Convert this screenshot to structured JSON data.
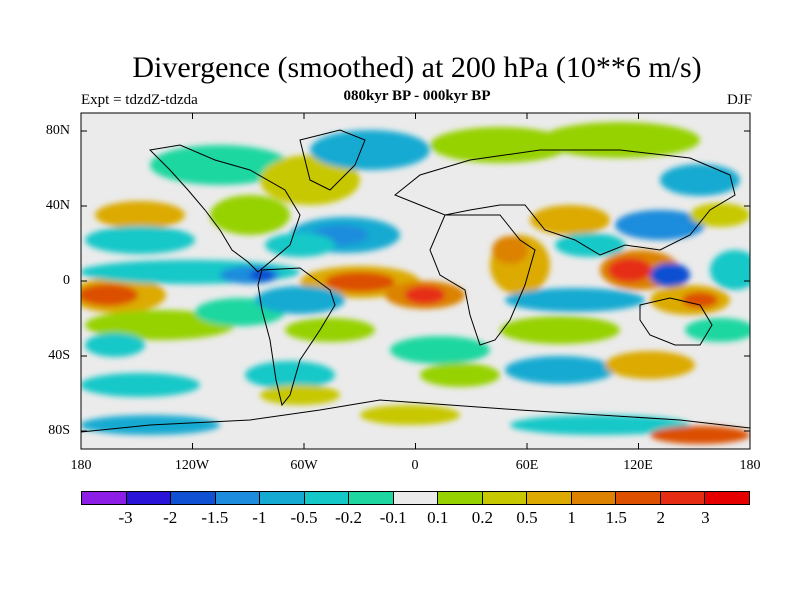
{
  "title": "Divergence (smoothed) at 200 hPa (10**6 m/s)",
  "subtitle": "080kyr BP - 000kyr BP",
  "expt": "Expt = tdzdZ-tdzda",
  "season": "DJF",
  "lat_ticks": [
    "80N",
    "40N",
    "0",
    "40S",
    "80S"
  ],
  "lon_ticks": [
    "180",
    "120W",
    "60W",
    "0",
    "60E",
    "120E",
    "180"
  ],
  "colorbar": {
    "colors": [
      "#8c1ee6",
      "#2a14d8",
      "#1050d2",
      "#1e8cdc",
      "#14aad2",
      "#14c8c8",
      "#1ed7a0",
      "#ebebeb",
      "#96d200",
      "#c8c800",
      "#dcaa00",
      "#dc8200",
      "#dc5000",
      "#e62d14",
      "#e60000"
    ],
    "labels": [
      "-3",
      "-2",
      "-1.5",
      "-1",
      "-0.5",
      "-0.2",
      "-0.1",
      "0.1",
      "0.2",
      "0.5",
      "1",
      "1.5",
      "2",
      "3"
    ]
  }
}
